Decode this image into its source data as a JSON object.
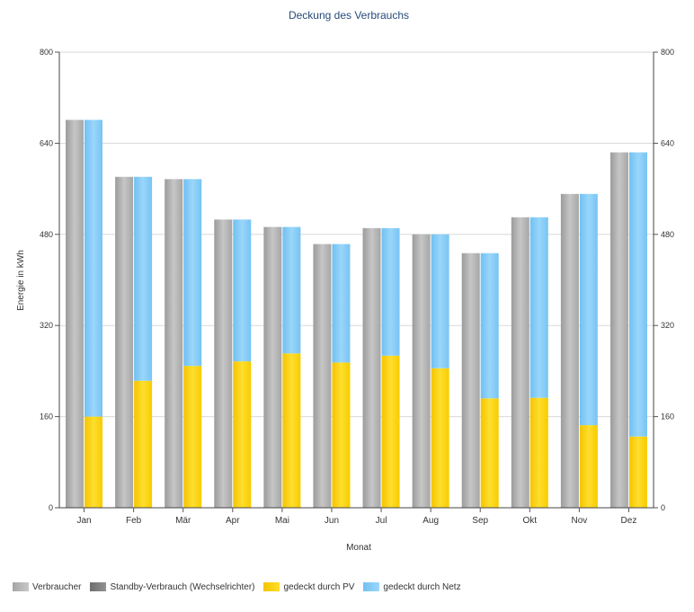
{
  "chart_data": {
    "type": "bar",
    "title": "Deckung des Verbrauchs",
    "xlabel": "Monat",
    "ylabel": "Energie in kWh",
    "ylim": [
      0,
      800
    ],
    "yticks": [
      0,
      160,
      320,
      480,
      640,
      800
    ],
    "secondary_y_axis": true,
    "grid": true,
    "legend_position": "bottom-left",
    "categories": [
      "Jan",
      "Feb",
      "Mär",
      "Apr",
      "Mai",
      "Jun",
      "Jul",
      "Aug",
      "Sep",
      "Okt",
      "Nov",
      "Dez"
    ],
    "series": [
      {
        "name": "Verbraucher",
        "stack": "consumption",
        "color": "#b2b2b2",
        "values": [
          681,
          581,
          577,
          506,
          493,
          463,
          491,
          480,
          447,
          510,
          551,
          624
        ]
      },
      {
        "name": "Standby-Verbrauch (Wechselrichter)",
        "stack": "consumption",
        "color": "#7d7d7d",
        "values": [
          0,
          0,
          0,
          0,
          0,
          0,
          0,
          0,
          0,
          0,
          0,
          0
        ]
      },
      {
        "name": "gedeckt durch PV",
        "stack": "coverage",
        "color": "#ffd200",
        "values": [
          160,
          223,
          249,
          257,
          271,
          255,
          267,
          245,
          192,
          193,
          145,
          125
        ]
      },
      {
        "name": "gedeckt durch Netz",
        "stack": "coverage",
        "color": "#86cdf6",
        "values": [
          521,
          358,
          328,
          249,
          222,
          208,
          224,
          235,
          255,
          317,
          406,
          499
        ]
      }
    ]
  }
}
